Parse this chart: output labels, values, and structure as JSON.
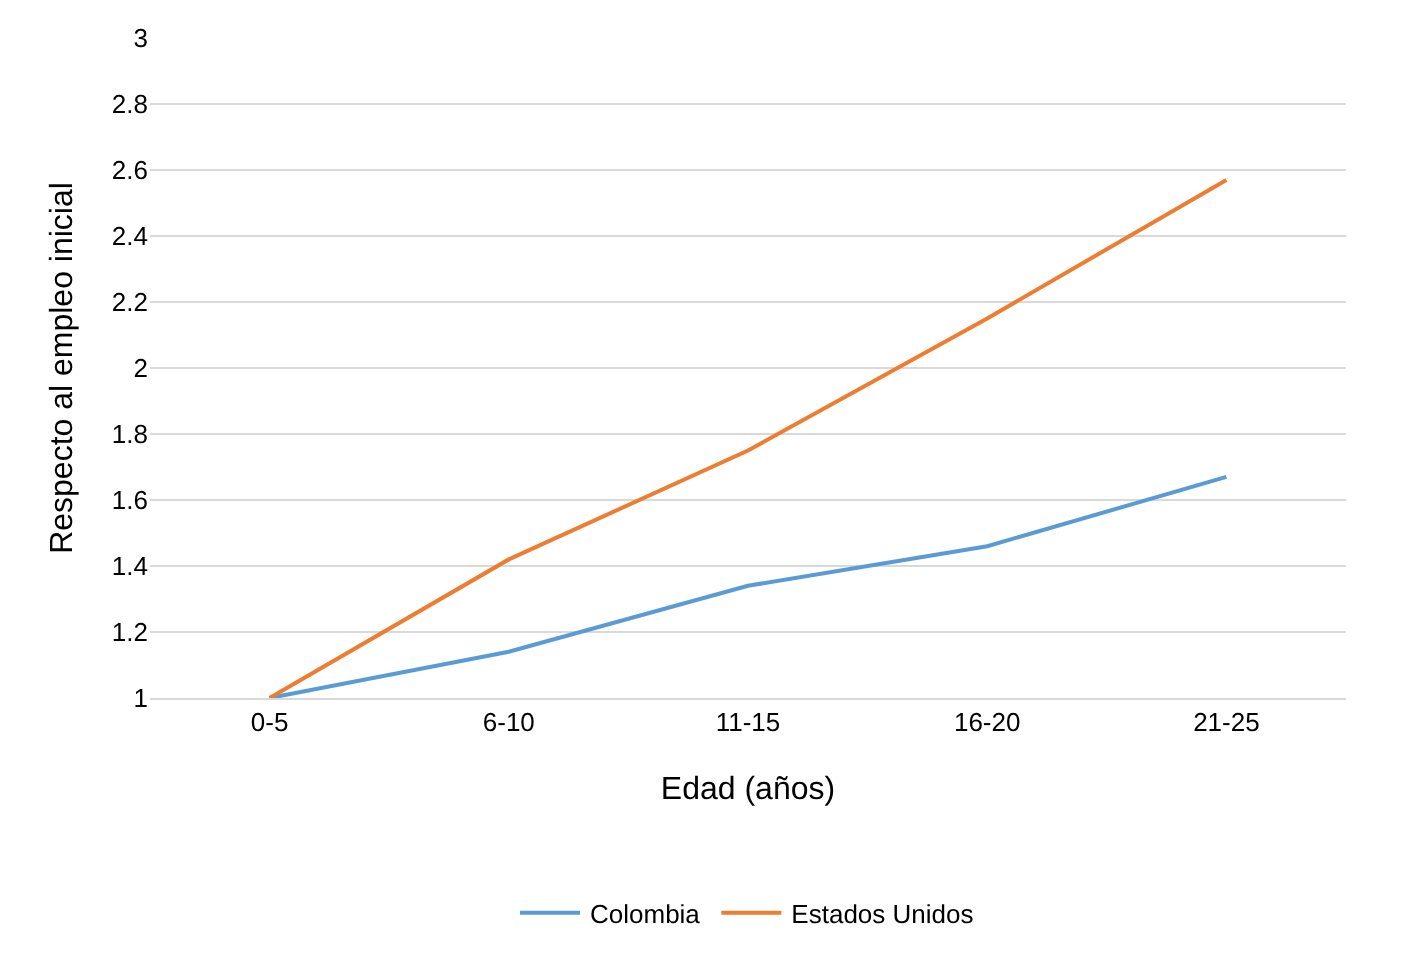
{
  "chart_data": {
    "type": "line",
    "xlabel": "Edad (años)",
    "ylabel": "Respecto al empleo inicial",
    "categories": [
      "0-5",
      "6-10",
      "11-15",
      "16-20",
      "21-25"
    ],
    "series": [
      {
        "name": "Colombia",
        "color": "#5b9bd5",
        "values": [
          1.0,
          1.14,
          1.34,
          1.46,
          1.67
        ]
      },
      {
        "name": "Estados Unidos",
        "color": "#ed7d31",
        "values": [
          1.0,
          1.42,
          1.75,
          2.15,
          2.57
        ]
      }
    ],
    "ylim": [
      1,
      3
    ],
    "yticks": [
      1,
      1.2,
      1.4,
      1.6,
      1.8,
      2,
      2.2,
      2.4,
      2.6,
      2.8,
      3
    ],
    "grid": "y",
    "legend": "bottom",
    "marker": "none",
    "line_style": "solid"
  }
}
